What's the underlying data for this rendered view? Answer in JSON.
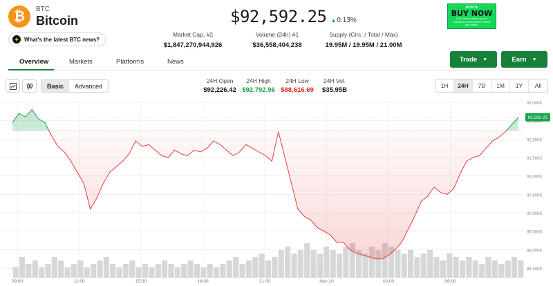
{
  "coin": {
    "logo_glyph": "₿",
    "symbol": "BTC",
    "name": "Bitcoin",
    "brand_color": "#f7931a"
  },
  "news_prompt": "What's the latest BTC news?",
  "price": {
    "value": "$92,592.25",
    "change": "0.13%"
  },
  "stats": [
    {
      "label": "Market Cap. #2",
      "value": "$1,847,270,944,926"
    },
    {
      "label": "Volume (24h) #1",
      "value": "$36,558,404,238"
    },
    {
      "label": "Supply (Circ. / Total / Max)",
      "value": "19.95M / 19.95M / 21.00M"
    }
  ],
  "ad": {
    "brand": "etoro",
    "cta": "BUY NOW",
    "fine": "Don't invest unless you're prepared to lose all the money you invest."
  },
  "tabs": [
    "Overview",
    "Markets",
    "Platforms",
    "News"
  ],
  "actions": {
    "trade": "Trade",
    "earn": "Earn"
  },
  "chart_controls": {
    "basic": "Basic",
    "advanced": "Advanced"
  },
  "ohlc": [
    {
      "label": "24H Open",
      "value": "$92,226.42",
      "tone": "normal"
    },
    {
      "label": "24H High",
      "value": "$92,792.96",
      "tone": "green"
    },
    {
      "label": "24H Low",
      "value": "$88,616.69",
      "tone": "red"
    },
    {
      "label": "24H Vol.",
      "value": "$35.95B",
      "tone": "normal"
    }
  ],
  "ranges": [
    "1H",
    "24H",
    "7D",
    "1M",
    "1Y",
    "All"
  ],
  "active_range": "24H",
  "chart_data": {
    "type": "line",
    "ylim": [
      88500,
      93000
    ],
    "y_ticks": [
      "93,000K",
      "92,500K",
      "92,000K",
      "91,500K",
      "91,000K",
      "90,500K",
      "90,000K",
      "89,500K",
      "89,000K",
      "88,500K"
    ],
    "x_ticks": [
      "09:00",
      "12:00",
      "15:00",
      "18:00",
      "21:00",
      "Nov 20",
      "03:00",
      "06:00"
    ],
    "current_price_label": "92,592.25",
    "reference_price": 92226.42,
    "series": [
      {
        "values": [
          92450,
          92700,
          92600,
          92800,
          92550,
          92450,
          92100,
          91800,
          91650,
          91400,
          91100,
          90800,
          90100,
          90400,
          90800,
          91100,
          91250,
          91400,
          91600,
          91950,
          91800,
          91850,
          91700,
          91550,
          91500,
          91700,
          91600,
          91550,
          91700,
          91650,
          91750,
          91950,
          91850,
          91700,
          91550,
          91650,
          91850,
          91750,
          91650,
          91550,
          91400,
          92200,
          91500,
          90800,
          90100,
          89900,
          89800,
          89600,
          89500,
          89400,
          89200,
          89200,
          89000,
          88900,
          88850,
          88800,
          88750,
          88750,
          88850,
          89000,
          89200,
          89550,
          89900,
          90300,
          90450,
          90700,
          90550,
          90500,
          90650,
          91050,
          91400,
          91500,
          91550,
          91750,
          91950,
          92050,
          92200,
          92400,
          92592.25
        ]
      }
    ],
    "volume": [
      3,
      6,
      4,
      5,
      3,
      4,
      6,
      5,
      3,
      4,
      5,
      3,
      4,
      5,
      6,
      4,
      3,
      4,
      5,
      3,
      4,
      3,
      4,
      5,
      4,
      3,
      4,
      5,
      4,
      3,
      4,
      3,
      4,
      5,
      6,
      4,
      5,
      6,
      7,
      5,
      6,
      8,
      9,
      7,
      8,
      10,
      8,
      7,
      9,
      8,
      7,
      9,
      10,
      8,
      7,
      9,
      8,
      10,
      9,
      8,
      7,
      8,
      6,
      7,
      8,
      6,
      5,
      7,
      6,
      5,
      6,
      5,
      4,
      6,
      5,
      4,
      5,
      6,
      5
    ],
    "line_color_up": "#16a34a",
    "line_color_down": "#e33b3b"
  }
}
